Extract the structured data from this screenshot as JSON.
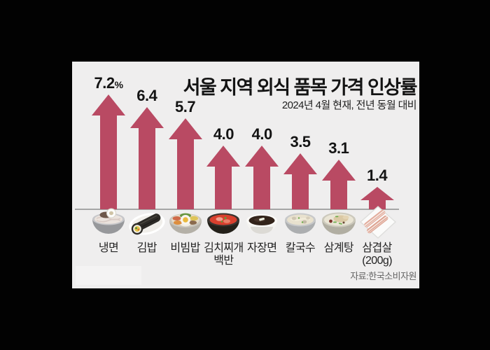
{
  "accent_color": "#b94a63",
  "background_color": "#020202",
  "panel_color": "#efeeee",
  "header": {
    "title": "서울 지역 외식 품목 가격 인상률",
    "subtitle": "2024년 4월 현재, 전년 동월 대비"
  },
  "footer": {
    "source": "자료:한국소비자원"
  },
  "chart_data": {
    "type": "bar",
    "style": "upward-arrow pictogram bars with food icons on baseline",
    "title": "서울 지역 외식 품목 가격 인상률",
    "subtitle": "2024년 4월 현재, 전년 동월 대비",
    "source": "자료:한국소비자원",
    "unit": "%",
    "categories": [
      "냉면",
      "김밥",
      "비빔밥",
      "김치찌개 백반",
      "자장면",
      "칼국수",
      "삼계탕",
      "삼겹살(200g)"
    ],
    "category_lines": [
      [
        "냉면"
      ],
      [
        "김밥"
      ],
      [
        "비빔밥"
      ],
      [
        "김치찌개",
        "백반"
      ],
      [
        "자장면"
      ],
      [
        "칼국수"
      ],
      [
        "삼계탕"
      ],
      [
        "삼겹살",
        "(200g)"
      ]
    ],
    "values": [
      7.2,
      6.4,
      5.7,
      4.0,
      4.0,
      3.5,
      3.1,
      1.4
    ],
    "value_labels": [
      "7.2%",
      "6.4",
      "5.7",
      "4.0",
      "4.0",
      "3.5",
      "3.1",
      "1.4"
    ],
    "icons": [
      "naengmyeon-icon",
      "gimbap-icon",
      "bibimbap-icon",
      "kimchi-jjigae-icon",
      "jajangmyeon-icon",
      "kalguksu-icon",
      "samgyetang-icon",
      "samgyeopsal-icon"
    ],
    "bar_color": "#b94a63",
    "ylim": [
      0,
      7.7
    ],
    "grid": false,
    "legend": "none"
  }
}
